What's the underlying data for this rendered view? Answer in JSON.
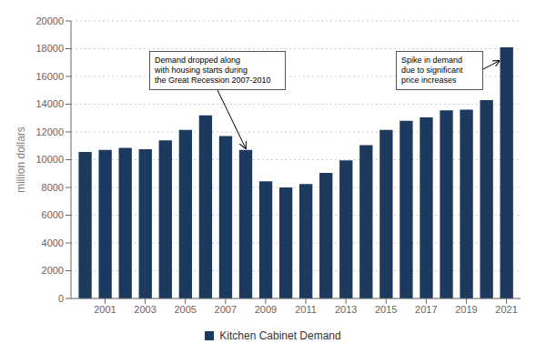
{
  "chart_data": {
    "type": "bar",
    "x": [
      2000,
      2001,
      2002,
      2003,
      2004,
      2005,
      2006,
      2007,
      2008,
      2009,
      2010,
      2011,
      2012,
      2013,
      2014,
      2015,
      2016,
      2017,
      2018,
      2019,
      2020,
      2021
    ],
    "series": [
      {
        "name": "Kitchen Cabinet Demand",
        "color": "#1c3a5e",
        "values": [
          10550,
          10700,
          10850,
          10750,
          11400,
          12150,
          13200,
          11700,
          10700,
          8450,
          8000,
          8250,
          9050,
          9950,
          11050,
          12150,
          12800,
          13050,
          13550,
          13600,
          14300,
          18100
        ]
      }
    ],
    "ylabel": "million dollars",
    "xlim": [
      1999.3,
      2021.7
    ],
    "xticks": [
      2001,
      2003,
      2005,
      2007,
      2009,
      2011,
      2013,
      2015,
      2017,
      2019,
      2021
    ],
    "ylim": [
      0,
      20000
    ],
    "yticks": [
      0,
      2000,
      4000,
      6000,
      8000,
      10000,
      12000,
      14000,
      16000,
      18000,
      20000
    ],
    "grid": true,
    "legend": "bottom",
    "annotations": [
      "Demand dropped along\nwith housing starts during\nthe Great Recession 2007-2010",
      "Spike in demand\ndue to significant\nprice increases"
    ]
  }
}
